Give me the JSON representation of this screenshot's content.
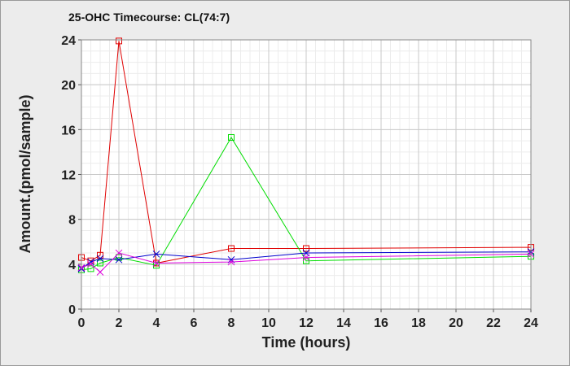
{
  "chart_data": {
    "type": "line",
    "title": "25-OHC Timecourse: CL(74:7)",
    "xlabel": "Time (hours)",
    "ylabel": "Amount.(pmol/sample)",
    "xlim": [
      0,
      24
    ],
    "ylim": [
      0,
      24
    ],
    "x_ticks": [
      0,
      2,
      4,
      6,
      8,
      10,
      12,
      14,
      16,
      18,
      20,
      22,
      24
    ],
    "y_ticks": [
      0,
      4,
      8,
      12,
      16,
      20,
      24
    ],
    "grid": true,
    "legend": "none",
    "series": [
      {
        "color": "#e00000",
        "marker": "square",
        "x": [
          0,
          0.5,
          1,
          2,
          4,
          8,
          12,
          24
        ],
        "y": [
          4.6,
          4.3,
          4.8,
          23.9,
          4.1,
          5.4,
          5.4,
          5.5
        ]
      },
      {
        "color": "#00dd00",
        "marker": "square",
        "x": [
          0,
          0.5,
          1,
          2,
          4,
          8,
          12,
          24
        ],
        "y": [
          3.5,
          3.6,
          4.1,
          4.6,
          3.9,
          15.3,
          4.3,
          4.7
        ]
      },
      {
        "color": "#0000cc",
        "marker": "x",
        "x": [
          0,
          0.5,
          1,
          2,
          4,
          8,
          12,
          24
        ],
        "y": [
          3.6,
          4.2,
          4.5,
          4.4,
          4.9,
          4.4,
          5.0,
          5.1
        ]
      },
      {
        "color": "#dd00dd",
        "marker": "x",
        "x": [
          0,
          0.5,
          1,
          2,
          4,
          8,
          12,
          24
        ],
        "y": [
          3.7,
          4.0,
          3.3,
          5.0,
          4.1,
          4.2,
          4.6,
          4.9
        ]
      }
    ]
  }
}
